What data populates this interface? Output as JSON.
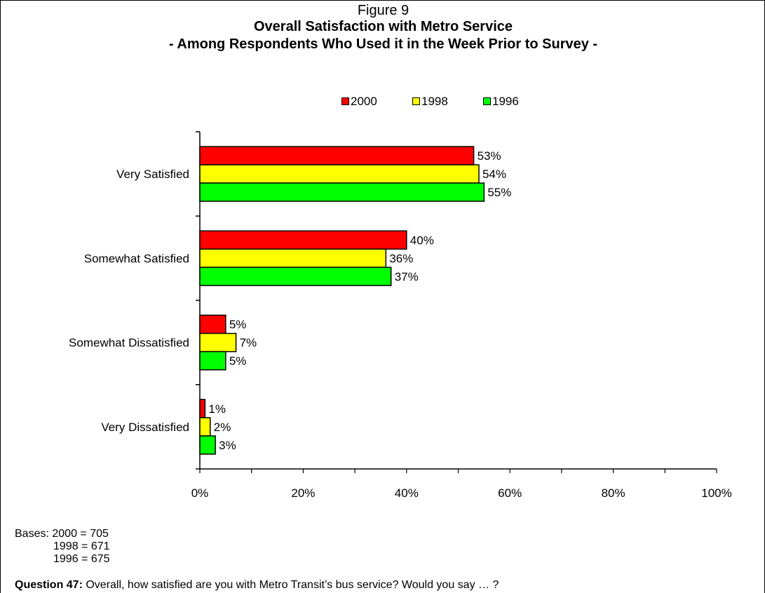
{
  "figure_label": "Figure 9",
  "chart_data": {
    "type": "bar",
    "orientation": "horizontal",
    "title": "Overall Satisfaction with Metro Service",
    "subtitle": "- Among Respondents Who Used it in the Week Prior to Survey -",
    "categories": [
      "Very Satisfied",
      "Somewhat Satisfied",
      "Somewhat Dissatisfied",
      "Very Dissatisfied"
    ],
    "series": [
      {
        "name": "2000",
        "color": "#ff0000",
        "values": [
          53,
          40,
          5,
          1
        ]
      },
      {
        "name": "1998",
        "color": "#ffff00",
        "values": [
          54,
          36,
          7,
          2
        ]
      },
      {
        "name": "1996",
        "color": "#00ff00",
        "values": [
          55,
          37,
          5,
          3
        ]
      }
    ],
    "value_suffix": "%",
    "xlim": [
      0,
      100
    ],
    "x_ticks": [
      "0%",
      "20%",
      "40%",
      "60%",
      "80%",
      "100%"
    ],
    "grid": false,
    "legend_position": "top-center"
  },
  "bases": {
    "label": "Bases:",
    "rows": [
      "2000 = 705",
      "1998 = 671",
      "1996 = 675"
    ]
  },
  "question": {
    "label": "Question 47:",
    "text": "Overall, how satisfied are you with Metro Transit’s bus service?  Would you say … ?"
  }
}
